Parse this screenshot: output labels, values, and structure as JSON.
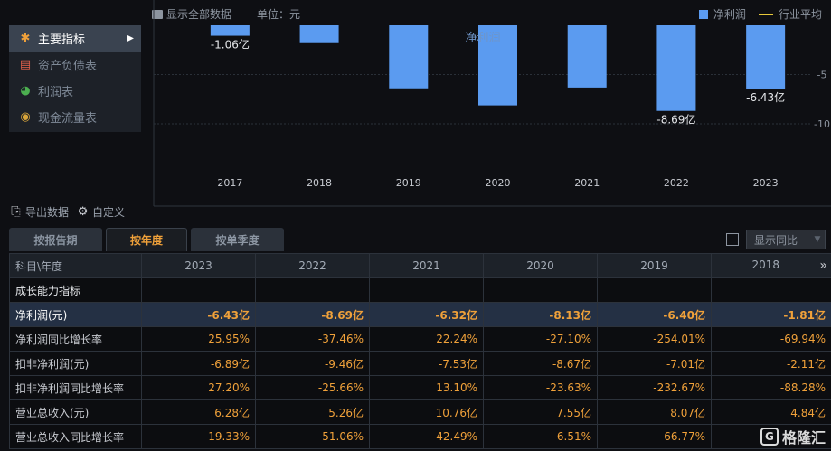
{
  "menu": [
    {
      "label": "主要指标",
      "icon": "asterisk-icon",
      "color": "#f0a13a",
      "active": true
    },
    {
      "label": "资产负债表",
      "icon": "document-icon",
      "color": "#e8614b",
      "active": false
    },
    {
      "label": "利润表",
      "icon": "pie-chart-icon",
      "color": "#4caf50",
      "active": false
    },
    {
      "label": "现金流量表",
      "icon": "coins-icon",
      "color": "#d9a53a",
      "active": false
    }
  ],
  "topbar": {
    "show_all": "显示全部数据",
    "unit": "单位：元"
  },
  "legend": {
    "bar_label": "净利润",
    "line_label": "行业平均",
    "bar_color": "#5b9bf0",
    "line_color": "#e8c93a"
  },
  "chart_data": {
    "type": "bar",
    "categories": [
      "2017",
      "2018",
      "2019",
      "2020",
      "2021",
      "2022",
      "2023"
    ],
    "series": [
      {
        "name": "净利润",
        "values": [
          -1.06,
          -1.81,
          -6.4,
          -8.13,
          -6.32,
          -8.69,
          -6.43
        ]
      }
    ],
    "ylim": [
      -14,
      0
    ],
    "yticks": [
      -5,
      -10
    ],
    "data_labels": {
      "2017": "-1.06亿",
      "2022": "-8.69亿",
      "2023": "-6.43亿"
    },
    "annotation": "净利润"
  },
  "toolbar": {
    "export": "导出数据",
    "custom": "自定义"
  },
  "tabs": [
    "按报告期",
    "按年度",
    "按单季度"
  ],
  "active_tab": 1,
  "yoy_label": "显示同比",
  "table": {
    "header_first": "科目\\年度",
    "years": [
      "2023",
      "2022",
      "2021",
      "2020",
      "2019",
      "2018"
    ],
    "rows": [
      {
        "label": "成长能力指标",
        "values": [
          "",
          "",
          "",
          "",
          "",
          ""
        ],
        "type": "section"
      },
      {
        "label": "净利润(元)",
        "values": [
          "-6.43亿",
          "-8.69亿",
          "-6.32亿",
          "-8.13亿",
          "-6.40亿",
          "-1.81亿"
        ],
        "type": "hl"
      },
      {
        "label": "净利润同比增长率",
        "values": [
          "25.95%",
          "-37.46%",
          "22.24%",
          "-27.10%",
          "-254.01%",
          "-69.94%"
        ],
        "type": ""
      },
      {
        "label": "扣非净利润(元)",
        "values": [
          "-6.89亿",
          "-9.46亿",
          "-7.53亿",
          "-8.67亿",
          "-7.01亿",
          "-2.11亿"
        ],
        "type": ""
      },
      {
        "label": "扣非净利润同比增长率",
        "values": [
          "27.20%",
          "-25.66%",
          "13.10%",
          "-23.63%",
          "-232.67%",
          "-88.28%"
        ],
        "type": ""
      },
      {
        "label": "营业总收入(元)",
        "values": [
          "6.28亿",
          "5.26亿",
          "10.76亿",
          "7.55亿",
          "8.07亿",
          "4.84亿"
        ],
        "type": ""
      },
      {
        "label": "营业总收入同比增长率",
        "values": [
          "19.33%",
          "-51.06%",
          "42.49%",
          "-6.51%",
          "66.77%",
          ""
        ],
        "type": ""
      }
    ]
  },
  "watermark": "格隆汇"
}
